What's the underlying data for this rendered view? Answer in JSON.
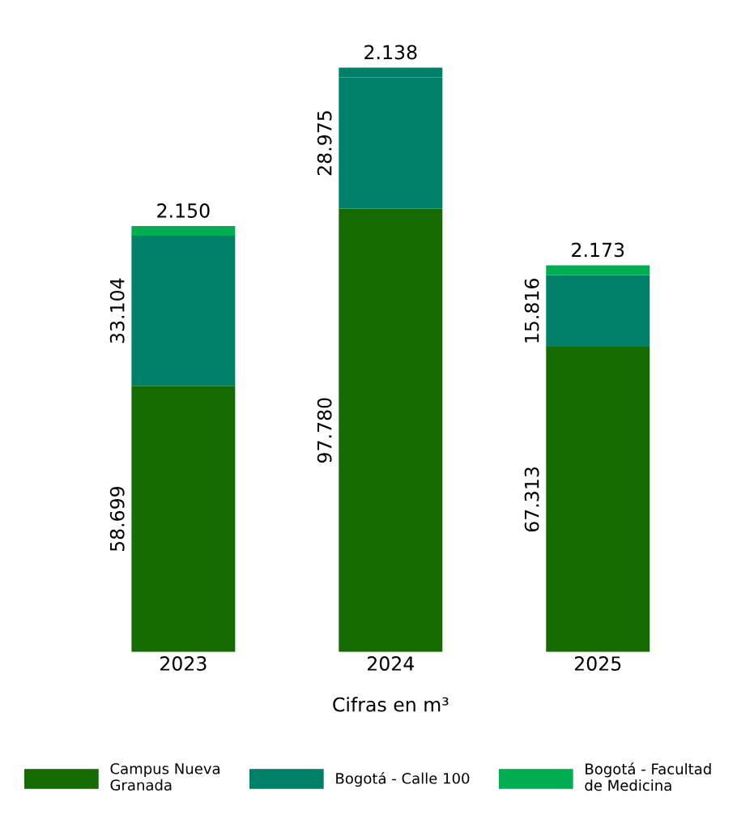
{
  "chart_data": {
    "type": "bar",
    "stacked": true,
    "xlabel": "Cifras en m³",
    "categories": [
      "2023",
      "2024",
      "2025"
    ],
    "series": [
      {
        "name": "Campus Nueva Granada",
        "color": "#166b00",
        "values": [
          58699,
          97780,
          67313
        ],
        "value_labels": [
          "58.699",
          "97.780",
          "67.313"
        ]
      },
      {
        "name": "Bogotá - Calle 100",
        "color": "#008068",
        "values": [
          33104,
          28975,
          15816
        ],
        "value_labels": [
          "33.104",
          "28.975",
          "15.816"
        ]
      },
      {
        "name": "Bogotá - Facultad de Medicina",
        "color": "#00ad50",
        "colors": [
          "#00ad50",
          "#008068",
          "#00ad50"
        ],
        "values": [
          2150,
          2138,
          2173
        ],
        "value_labels": [
          "2.150",
          "2.138",
          "2.173"
        ]
      }
    ],
    "legend": "bottom"
  }
}
